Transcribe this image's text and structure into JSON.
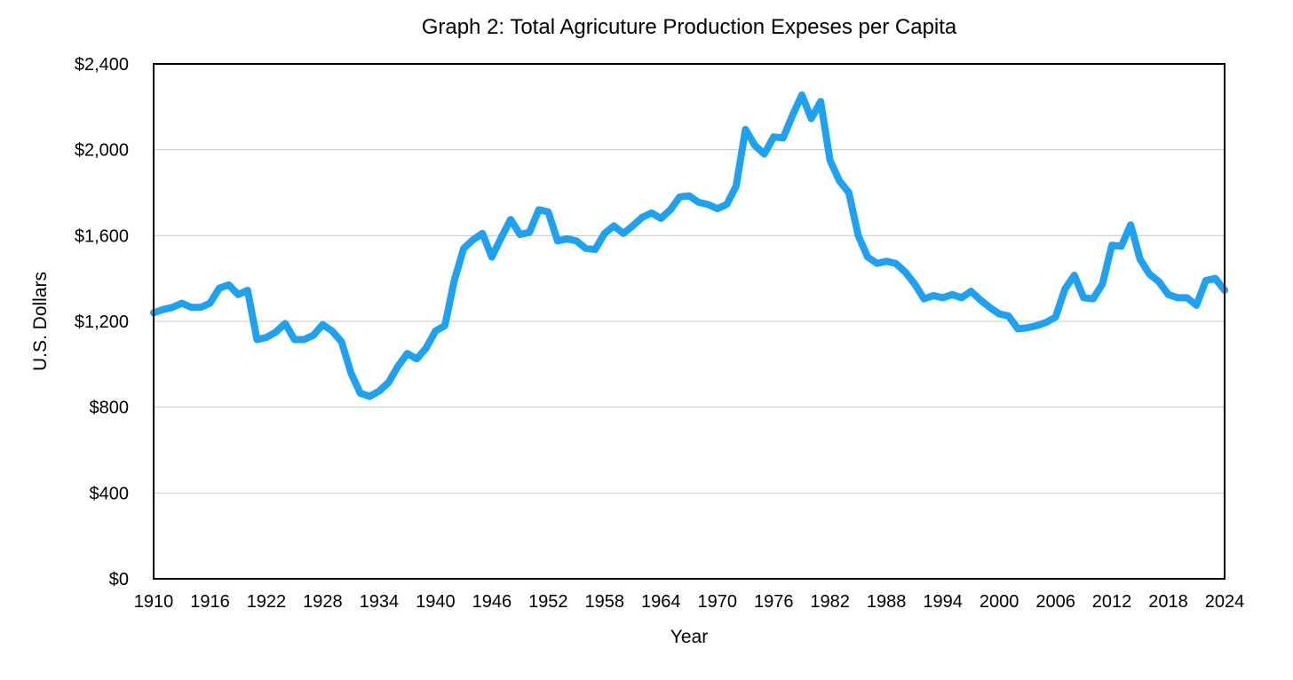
{
  "chart_data": {
    "type": "line",
    "title": "Graph 2: Total Agricuture Production Expeses per Capita",
    "xlabel": "Year",
    "ylabel": "U.S. Dollars",
    "xlim": [
      1910,
      2024
    ],
    "ylim": [
      0,
      2400
    ],
    "x_ticks": [
      1910,
      1916,
      1922,
      1928,
      1934,
      1940,
      1946,
      1952,
      1958,
      1964,
      1970,
      1976,
      1982,
      1988,
      1994,
      2000,
      2006,
      2012,
      2018,
      2024
    ],
    "y_ticks": [
      0,
      400,
      800,
      1200,
      1600,
      2000,
      2400
    ],
    "y_tick_labels": [
      "$0",
      "$400",
      "$800",
      "$1,200",
      "$1,600",
      "$2,000",
      "$2,400"
    ],
    "grid": "horizontal",
    "series_color": "#1da1f2",
    "x": [
      1910,
      1911,
      1912,
      1913,
      1914,
      1915,
      1916,
      1917,
      1918,
      1919,
      1920,
      1921,
      1922,
      1923,
      1924,
      1925,
      1926,
      1927,
      1928,
      1929,
      1930,
      1931,
      1932,
      1933,
      1934,
      1935,
      1936,
      1937,
      1938,
      1939,
      1940,
      1941,
      1942,
      1943,
      1944,
      1945,
      1946,
      1947,
      1948,
      1949,
      1950,
      1951,
      1952,
      1953,
      1954,
      1955,
      1956,
      1957,
      1958,
      1959,
      1960,
      1961,
      1962,
      1963,
      1964,
      1965,
      1966,
      1967,
      1968,
      1969,
      1970,
      1971,
      1972,
      1973,
      1974,
      1975,
      1976,
      1977,
      1978,
      1979,
      1980,
      1981,
      1982,
      1983,
      1984,
      1985,
      1986,
      1987,
      1988,
      1989,
      1990,
      1991,
      1992,
      1993,
      1994,
      1995,
      1996,
      1997,
      1998,
      1999,
      2000,
      2001,
      2002,
      2003,
      2004,
      2005,
      2006,
      2007,
      2008,
      2009,
      2010,
      2011,
      2012,
      2013,
      2014,
      2015,
      2016,
      2017,
      2018,
      2019,
      2020,
      2021,
      2022,
      2023,
      2024
    ],
    "values": [
      1240,
      1255,
      1265,
      1285,
      1265,
      1265,
      1285,
      1355,
      1370,
      1325,
      1345,
      1115,
      1125,
      1150,
      1190,
      1115,
      1115,
      1135,
      1185,
      1155,
      1105,
      960,
      865,
      850,
      875,
      915,
      990,
      1050,
      1025,
      1075,
      1155,
      1180,
      1390,
      1540,
      1580,
      1610,
      1500,
      1590,
      1675,
      1605,
      1615,
      1720,
      1710,
      1575,
      1585,
      1575,
      1540,
      1535,
      1610,
      1645,
      1610,
      1645,
      1685,
      1705,
      1680,
      1720,
      1780,
      1785,
      1755,
      1745,
      1725,
      1745,
      1830,
      2095,
      2020,
      1980,
      2060,
      2055,
      2160,
      2255,
      2145,
      2225,
      1950,
      1855,
      1800,
      1600,
      1500,
      1470,
      1480,
      1470,
      1430,
      1375,
      1305,
      1320,
      1310,
      1325,
      1310,
      1340,
      1300,
      1265,
      1235,
      1225,
      1165,
      1170,
      1180,
      1195,
      1220,
      1350,
      1415,
      1310,
      1305,
      1375,
      1555,
      1550,
      1650,
      1490,
      1420,
      1385,
      1325,
      1310,
      1310,
      1275,
      1390,
      1400,
      1345
    ]
  }
}
